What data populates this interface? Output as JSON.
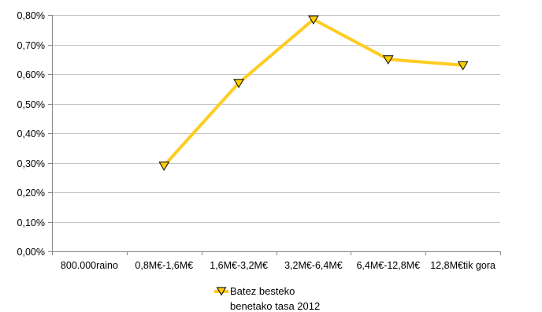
{
  "chart_data": {
    "type": "line",
    "categories": [
      "800.000raino",
      "0,8M€-1,6M€",
      "1,6M€-3,2M€",
      "3,2M€-6,4M€",
      "6,4M€-12,8M€",
      "12,8M€tik gora"
    ],
    "y_tick_labels": [
      "0,00%",
      "0,10%",
      "0,20%",
      "0,30%",
      "0,40%",
      "0,50%",
      "0,60%",
      "0,70%",
      "0,80%"
    ],
    "ylim": [
      0,
      0.8
    ],
    "y_unit": "percent",
    "grid": true,
    "legend_position": "bottom",
    "series": [
      {
        "name_lines": [
          "Batez besteko",
          "benetako tasa 2012"
        ],
        "values": [
          null,
          0.29,
          0.57,
          0.785,
          0.65,
          0.63
        ],
        "color": "#FFCC22",
        "marker": "triangle-down",
        "marker_fill": "#FFCC00",
        "marker_stroke": "#000000"
      }
    ]
  }
}
